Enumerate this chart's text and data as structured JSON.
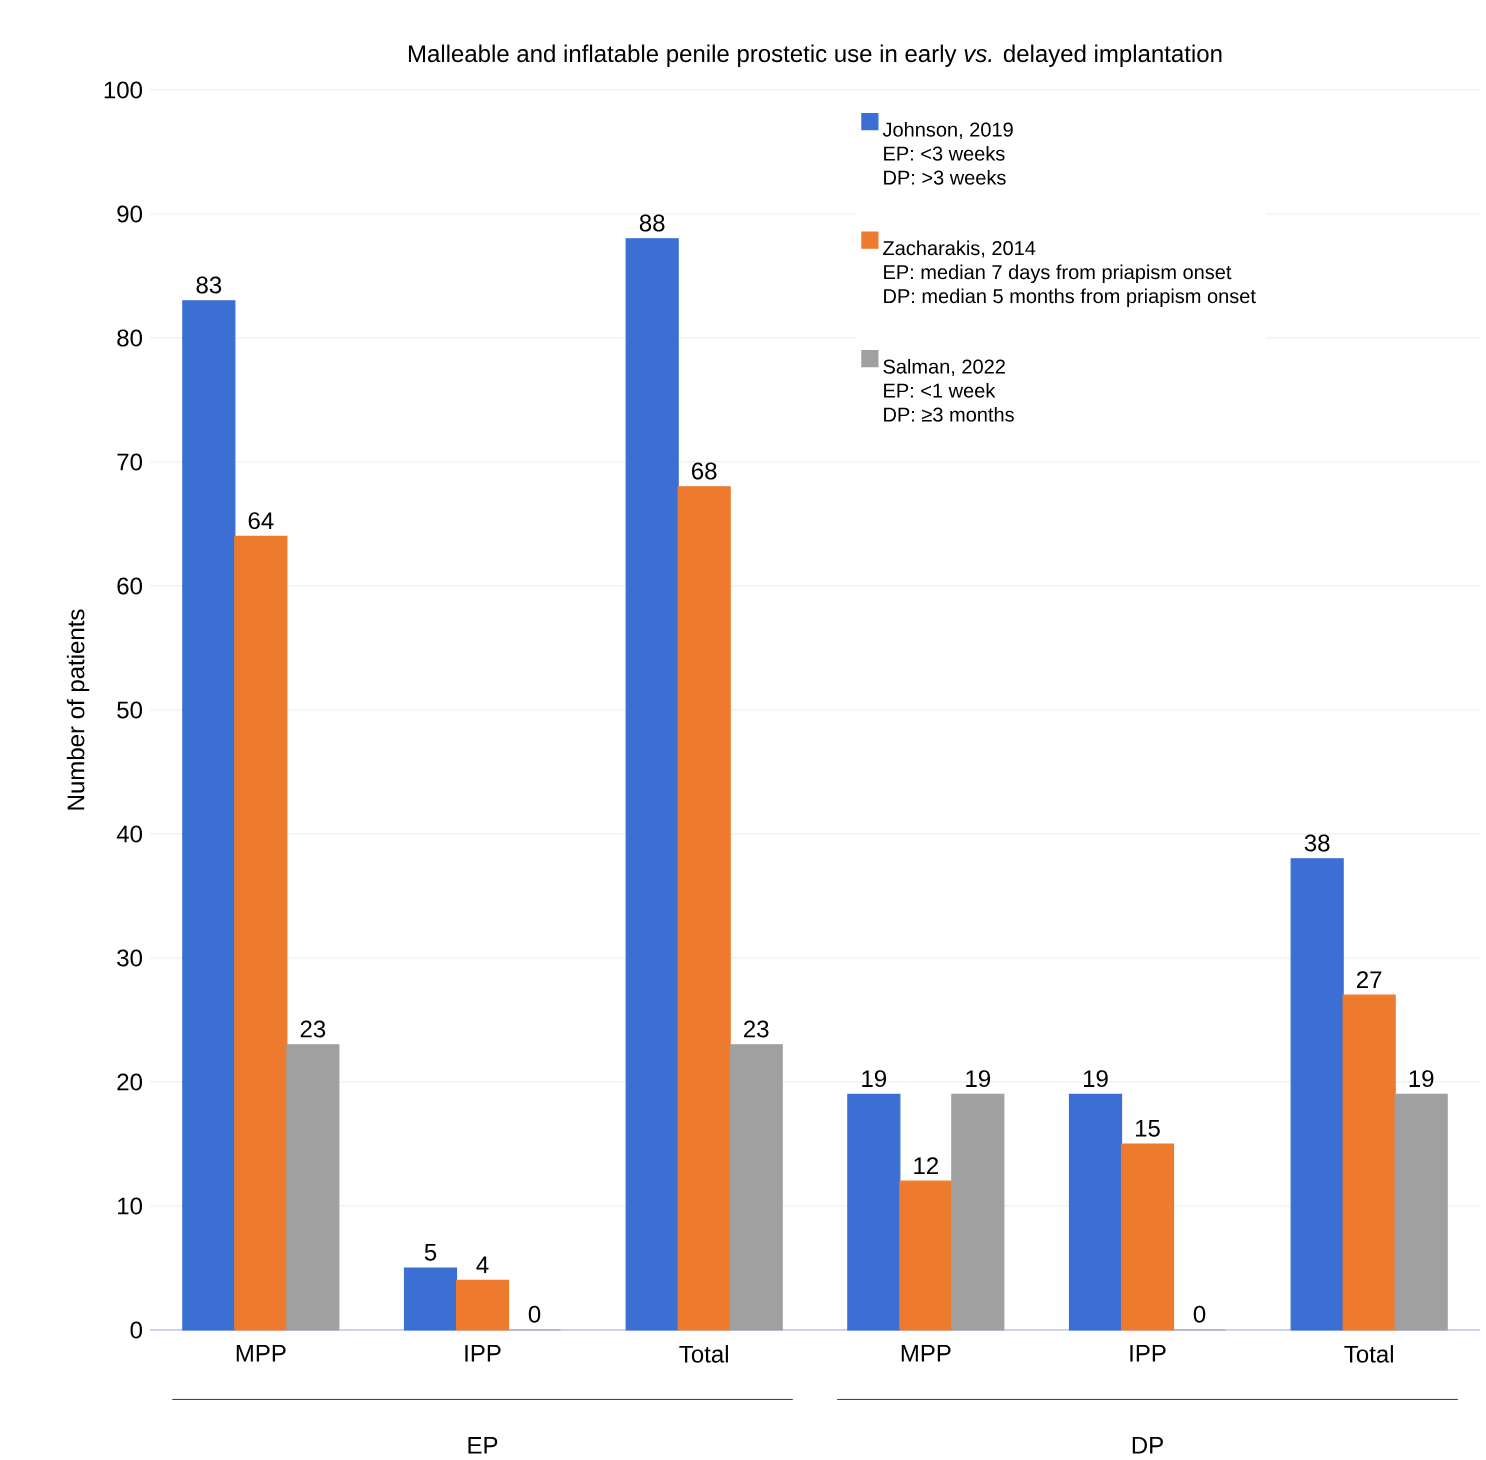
{
  "chart_data": {
    "type": "bar",
    "title": "Malleable and inflatable penile prostetic use in early *vs.* delayed implantation",
    "ylabel": "Number of patients",
    "categories": [
      "MPP",
      "IPP",
      "Total",
      "MPP",
      "IPP",
      "Total"
    ],
    "series": [
      {
        "name": "Johnson, 2019",
        "color": "#3b6fd4",
        "values": [
          83,
          5,
          88,
          19,
          19,
          38
        ]
      },
      {
        "name": "Zacharakis, 2014",
        "color": "#ee7a2e",
        "values": [
          64,
          4,
          68,
          12,
          15,
          27
        ]
      },
      {
        "name": "Salman, 2022",
        "color": "#a0a0a0",
        "values": [
          23,
          0,
          23,
          19,
          0,
          19
        ]
      }
    ],
    "annotations": [
      "EP: <3 weeks",
      "DP: >3 weeks",
      "EP: median 7 days from priapism onset",
      "DP: median 5 months from priapism onset",
      "EP: <1 week",
      "DP: ≥3 months",
      "EP",
      "DP"
    ],
    "ylim": [
      0,
      100
    ],
    "yticks": [
      0,
      10,
      20,
      30,
      40,
      50,
      60,
      70,
      80,
      90,
      100
    ],
    "grid": "y",
    "legend": "top right",
    "data_labels": true
  }
}
